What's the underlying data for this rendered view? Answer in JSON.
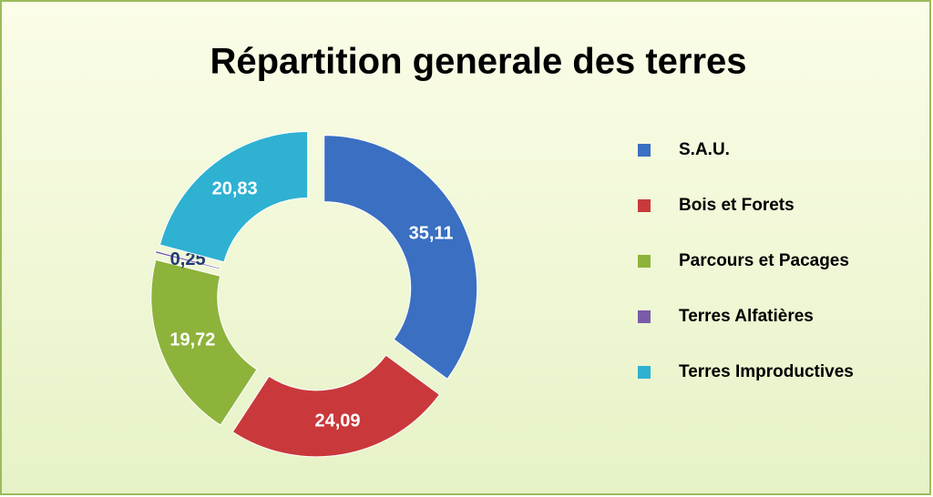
{
  "chart_data": {
    "type": "pie",
    "title": "Répartition generale des terres",
    "categories": [
      "S.A.U.",
      "Bois et Forets",
      "Parcours et Pacages",
      "Terres Alfatières",
      "Terres Improductives"
    ],
    "values": [
      35.11,
      24.09,
      19.72,
      0.25,
      20.83
    ],
    "value_labels": [
      "35,11",
      "24,09",
      "19,72",
      "0,25",
      "20,83"
    ],
    "colors": [
      "#3a6fc2",
      "#c9393b",
      "#8db33b",
      "#7a5ba8",
      "#2fb1d2"
    ],
    "legend": "right"
  }
}
